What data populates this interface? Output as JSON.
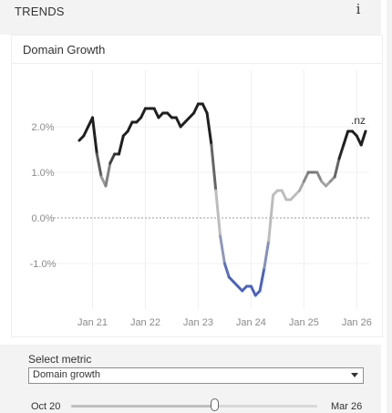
{
  "header": {
    "title": "TRENDS",
    "info_icon": "info-icon",
    "info_glyph": "i"
  },
  "card": {
    "title": "Domain Growth"
  },
  "chart_data": {
    "type": "line",
    "title": "",
    "xlabel": "",
    "ylabel": "",
    "series_label": ".nz",
    "x_start": "2020-10",
    "x_end": "2026-03",
    "ylim": [
      -2.0,
      2.9
    ],
    "yticks": [
      2.0,
      1.0,
      0.0,
      -1.0
    ],
    "ytick_labels": [
      "2.0%",
      "1.0%",
      "0.0%",
      "-1.0%"
    ],
    "xticks": [
      "2021-01",
      "2022-01",
      "2023-01",
      "2024-01",
      "2025-01",
      "2026-01"
    ],
    "xtick_labels": [
      "Jan 21",
      "Jan 22",
      "Jan 23",
      "Jan 24",
      "Jan 25",
      "Jan 26"
    ],
    "zero_line": "dotted",
    "grid": "vertical-and-horizontal-light",
    "colors": {
      "positive": "#1f1f1f",
      "neutral": "#bdbdbd",
      "negative": "#4a62c0"
    },
    "series": [
      {
        "name": ".nz",
        "x": [
          "2020-10",
          "2020-11",
          "2020-12",
          "2021-01",
          "2021-02",
          "2021-03",
          "2021-04",
          "2021-05",
          "2021-06",
          "2021-07",
          "2021-08",
          "2021-09",
          "2021-10",
          "2021-11",
          "2021-12",
          "2022-01",
          "2022-02",
          "2022-03",
          "2022-04",
          "2022-05",
          "2022-06",
          "2022-07",
          "2022-08",
          "2022-09",
          "2022-10",
          "2022-11",
          "2022-12",
          "2023-01",
          "2023-02",
          "2023-03",
          "2023-04",
          "2023-05",
          "2023-06",
          "2023-07",
          "2023-08",
          "2023-09",
          "2023-10",
          "2023-11",
          "2023-12",
          "2024-01",
          "2024-02",
          "2024-03",
          "2024-04",
          "2024-05",
          "2024-06",
          "2024-07",
          "2024-08",
          "2024-09",
          "2024-10",
          "2024-11",
          "2024-12",
          "2025-01",
          "2025-02",
          "2025-03",
          "2025-04",
          "2025-05",
          "2025-06",
          "2025-07",
          "2025-08",
          "2025-09",
          "2025-10",
          "2025-11",
          "2025-12",
          "2026-01",
          "2026-02",
          "2026-03"
        ],
        "values": [
          1.7,
          1.8,
          2.0,
          2.2,
          1.4,
          0.9,
          0.7,
          1.2,
          1.4,
          1.4,
          1.8,
          1.9,
          2.1,
          2.1,
          2.2,
          2.4,
          2.4,
          2.4,
          2.2,
          2.3,
          2.3,
          2.2,
          2.2,
          2.0,
          2.1,
          2.2,
          2.3,
          2.5,
          2.5,
          2.3,
          1.6,
          0.6,
          -0.4,
          -1.0,
          -1.3,
          -1.4,
          -1.5,
          -1.6,
          -1.5,
          -1.5,
          -1.7,
          -1.6,
          -1.1,
          -0.5,
          0.5,
          0.6,
          0.6,
          0.4,
          0.4,
          0.5,
          0.6,
          0.8,
          1.0,
          1.0,
          1.0,
          0.8,
          0.7,
          0.8,
          0.9,
          1.3,
          1.6,
          1.9,
          1.9,
          1.8,
          1.6,
          1.9
        ]
      }
    ]
  },
  "controls": {
    "metric_label": "Select metric",
    "metric_value": "Domain growth",
    "slider_start": "Oct 20",
    "slider_end": "Mar 26",
    "slider_position": 0.58
  }
}
